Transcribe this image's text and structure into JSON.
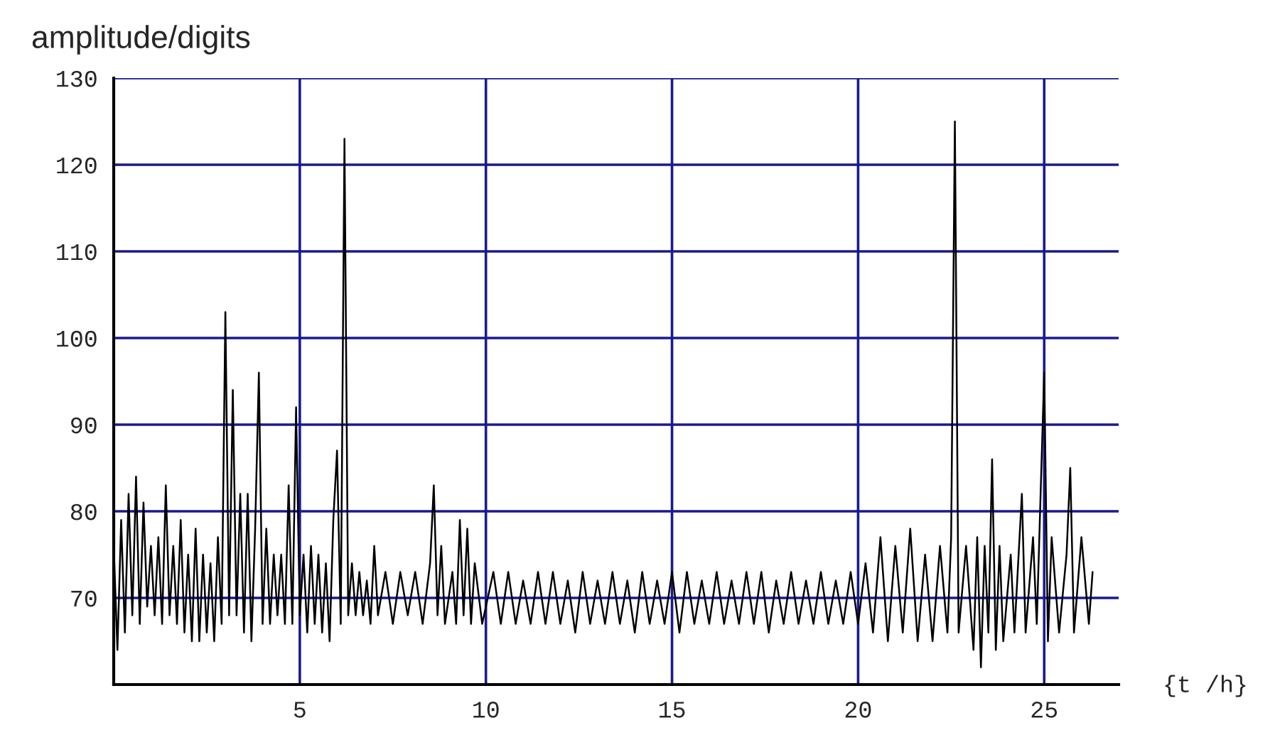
{
  "chart_data": {
    "type": "line",
    "ylabel": "amplitude/digits",
    "xlabel": "{t /h}",
    "xlim": [
      0,
      27
    ],
    "ylim": [
      60,
      130
    ],
    "xticks": [
      5,
      10,
      15,
      20,
      25
    ],
    "yticks": [
      70,
      80,
      90,
      100,
      110,
      120,
      130
    ],
    "grid": true,
    "marker": "none",
    "line_style": "solid",
    "series": [
      {
        "color": "#000000",
        "x": [
          0.0,
          0.1,
          0.2,
          0.3,
          0.4,
          0.5,
          0.6,
          0.7,
          0.8,
          0.9,
          1.0,
          1.1,
          1.2,
          1.3,
          1.4,
          1.5,
          1.6,
          1.7,
          1.8,
          1.9,
          2.0,
          2.1,
          2.2,
          2.3,
          2.4,
          2.5,
          2.6,
          2.7,
          2.8,
          2.9,
          3.0,
          3.1,
          3.2,
          3.3,
          3.4,
          3.5,
          3.6,
          3.7,
          3.8,
          3.9,
          4.0,
          4.1,
          4.2,
          4.3,
          4.4,
          4.5,
          4.6,
          4.7,
          4.8,
          4.9,
          5.0,
          5.1,
          5.2,
          5.3,
          5.4,
          5.5,
          5.6,
          5.7,
          5.8,
          5.9,
          6.0,
          6.1,
          6.2,
          6.3,
          6.4,
          6.5,
          6.6,
          6.7,
          6.8,
          6.9,
          7.0,
          7.1,
          7.3,
          7.5,
          7.7,
          7.9,
          8.1,
          8.3,
          8.5,
          8.6,
          8.7,
          8.8,
          8.9,
          9.1,
          9.2,
          9.3,
          9.4,
          9.5,
          9.6,
          9.7,
          9.9,
          10.2,
          10.4,
          10.6,
          10.8,
          11.0,
          11.2,
          11.4,
          11.6,
          11.8,
          12.0,
          12.2,
          12.4,
          12.6,
          12.8,
          13.0,
          13.2,
          13.4,
          13.6,
          13.8,
          14.0,
          14.2,
          14.4,
          14.6,
          14.8,
          15.0,
          15.2,
          15.4,
          15.6,
          15.8,
          16.0,
          16.2,
          16.4,
          16.6,
          16.8,
          17.0,
          17.2,
          17.4,
          17.6,
          17.8,
          18.0,
          18.2,
          18.4,
          18.6,
          18.8,
          19.0,
          19.2,
          19.4,
          19.6,
          19.8,
          20.0,
          20.2,
          20.4,
          20.6,
          20.8,
          21.0,
          21.2,
          21.4,
          21.6,
          21.8,
          22.0,
          22.2,
          22.4,
          22.5,
          22.6,
          22.7,
          22.9,
          23.1,
          23.2,
          23.3,
          23.4,
          23.5,
          23.6,
          23.7,
          23.8,
          23.9,
          24.1,
          24.2,
          24.4,
          24.5,
          24.7,
          24.8,
          25.0,
          25.1,
          25.2,
          25.4,
          25.6,
          25.7,
          25.8,
          26.0,
          26.2,
          26.3
        ],
        "values": [
          76,
          64,
          79,
          66,
          82,
          68,
          84,
          67,
          81,
          69,
          76,
          68,
          77,
          67,
          83,
          68,
          76,
          67,
          79,
          66,
          75,
          65,
          78,
          65,
          75,
          66,
          74,
          65,
          77,
          67,
          103,
          68,
          94,
          68,
          82,
          66,
          82,
          65,
          78,
          96,
          67,
          78,
          67,
          75,
          68,
          75,
          67,
          83,
          67,
          92,
          68,
          75,
          66,
          76,
          67,
          75,
          66,
          74,
          65,
          79,
          87,
          67,
          123,
          68,
          74,
          68,
          73,
          68,
          72,
          67,
          76,
          68,
          73,
          67,
          73,
          68,
          73,
          67,
          74,
          83,
          68,
          76,
          67,
          73,
          67,
          79,
          68,
          78,
          67,
          74,
          67,
          73,
          67,
          73,
          67,
          72,
          67,
          73,
          67,
          73,
          67,
          72,
          66,
          73,
          67,
          72,
          67,
          73,
          67,
          72,
          66,
          73,
          67,
          72,
          67,
          73,
          66,
          73,
          67,
          72,
          67,
          73,
          67,
          72,
          67,
          73,
          67,
          73,
          66,
          72,
          67,
          73,
          67,
          72,
          67,
          73,
          67,
          72,
          67,
          73,
          67,
          74,
          66,
          77,
          65,
          76,
          66,
          78,
          65,
          75,
          65,
          76,
          66,
          77,
          125,
          66,
          76,
          64,
          77,
          62,
          76,
          66,
          86,
          64,
          76,
          65,
          75,
          66,
          82,
          66,
          77,
          67,
          96,
          65,
          77,
          66,
          75,
          85,
          66,
          77,
          67,
          73
        ]
      }
    ]
  }
}
